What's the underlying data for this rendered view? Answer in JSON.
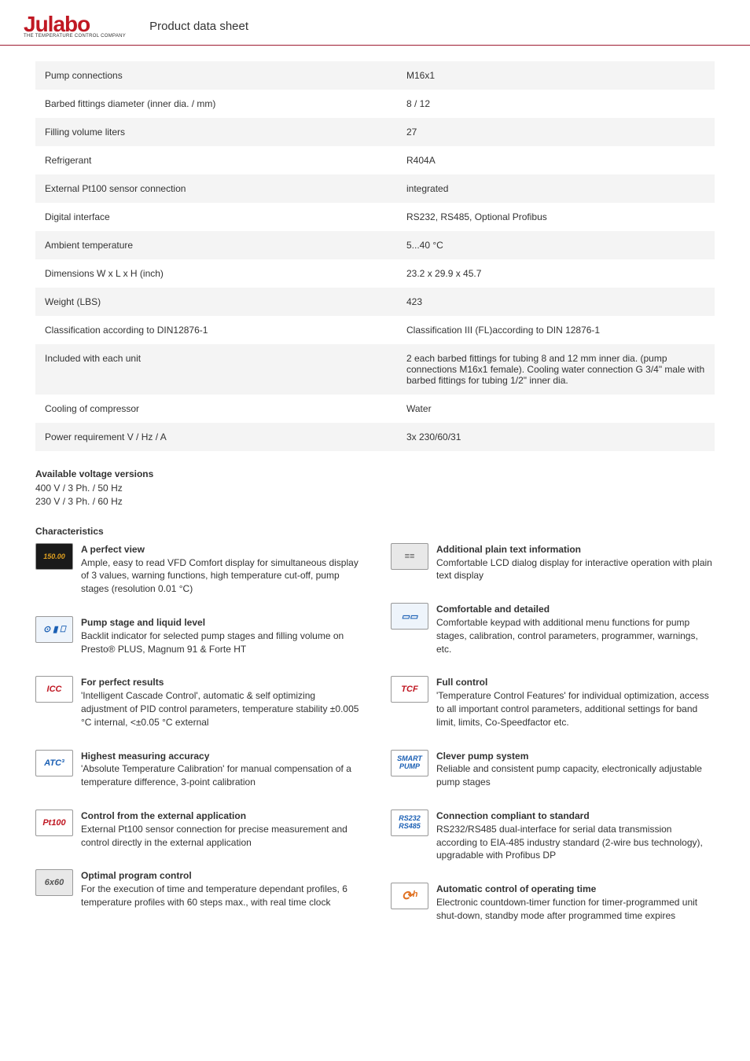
{
  "header": {
    "brand": "Julabo",
    "tagline": "THE TEMPERATURE CONTROL COMPANY",
    "title": "Product data sheet"
  },
  "specs": [
    {
      "label": "Pump connections",
      "value": "M16x1"
    },
    {
      "label": "Barbed fittings diameter (inner dia. / mm)",
      "value": "8 / 12"
    },
    {
      "label": "Filling volume liters",
      "value": "27"
    },
    {
      "label": "Refrigerant",
      "value": "R404A"
    },
    {
      "label": "External Pt100 sensor connection",
      "value": "integrated"
    },
    {
      "label": "Digital interface",
      "value": "RS232, RS485, Optional Profibus"
    },
    {
      "label": "Ambient temperature",
      "value": "5...40 °C"
    },
    {
      "label": "Dimensions W x L x H (inch)",
      "value": "23.2 x 29.9 x 45.7"
    },
    {
      "label": "Weight (LBS)",
      "value": "423"
    },
    {
      "label": "Classification according to DIN12876-1",
      "value": "Classification III (FL)according to DIN 12876-1"
    },
    {
      "label": "Included with each unit",
      "value": "2 each barbed fittings for tubing 8 and 12 mm inner dia. (pump connections M16x1 female). Cooling water connection G 3/4\" male with barbed fittings for tubing 1/2\" inner dia."
    },
    {
      "label": "Cooling of compressor",
      "value": "Water"
    },
    {
      "label": "Power requirement V / Hz / A",
      "value": "3x 230/60/31"
    }
  ],
  "voltage": {
    "heading": "Available voltage versions",
    "lines": [
      "400 V / 3 Ph. / 50 Hz",
      "230 V / 3 Ph. / 60 Hz"
    ]
  },
  "characteristics": {
    "heading": "Characteristics",
    "left": [
      {
        "icon": "150.00",
        "cls": "dark",
        "title": "A perfect view",
        "body": "Ample, easy to read VFD Comfort display for simultaneous display of 3 values, warning functions, high temperature cut-off, pump stages (resolution 0.01 °C)"
      },
      {
        "icon": "⊙ ▮ ⎕",
        "cls": "light",
        "title": "Pump stage and liquid level",
        "body": "Backlit indicator for selected pump stages and filling volume on Presto® PLUS, Magnum 91 & Forte HT"
      },
      {
        "icon": "ICC",
        "cls": "red",
        "title": "For perfect results",
        "body": "'Intelligent Cascade Control', automatic & self optimizing adjustment of PID control parameters, temperature stability ±0.005 °C internal, <±0.05 °C external"
      },
      {
        "icon": "ATC³",
        "cls": "",
        "title": "Highest measuring accuracy",
        "body": "'Absolute Temperature Calibration' for manual compensation of a temperature difference, 3-point calibration"
      },
      {
        "icon": "Pt100",
        "cls": "red",
        "title": "Control from the external application",
        "body": "External Pt100 sensor connection for precise measurement and control directly in the external application"
      },
      {
        "icon": "6x60",
        "cls": "gray",
        "title": "Optimal program control",
        "body": "For the execution of time and temperature dependant profiles, 6 temperature profiles with 60 steps max., with real time clock"
      }
    ],
    "right": [
      {
        "icon": "≡≡",
        "cls": "gray",
        "title": "Additional plain text information",
        "body": "Comfortable LCD dialog display for interactive operation with plain text display"
      },
      {
        "icon": "▭▭",
        "cls": "light",
        "title": "Comfortable and detailed",
        "body": "Comfortable keypad with additional menu functions for pump stages, calibration, control parameters, programmer, warnings, etc."
      },
      {
        "icon": "TCF",
        "cls": "red",
        "title": "Full control",
        "body": "'Temperature Control Features' for individual optimization, access to all important control parameters, additional settings for band limit, limits, Co-Speedfactor etc."
      },
      {
        "icon": "SMART\nPUMP",
        "cls": "",
        "title": "Clever pump system",
        "body": "Reliable and consistent pump capacity, electronically adjustable pump stages"
      },
      {
        "icon": "RS232\nRS485",
        "cls": "",
        "title": "Connection compliant to standard",
        "body": "RS232/RS485 dual-interface for serial data transmission according to EIA-485 industry standard (2-wire bus technology), upgradable with Profibus DP"
      },
      {
        "icon": "⟳ʰ",
        "cls": "timer",
        "title": "Automatic control of operating time",
        "body": "Electronic countdown-timer function for timer-programmed unit shut-down, standby mode after programmed time expires"
      }
    ]
  }
}
